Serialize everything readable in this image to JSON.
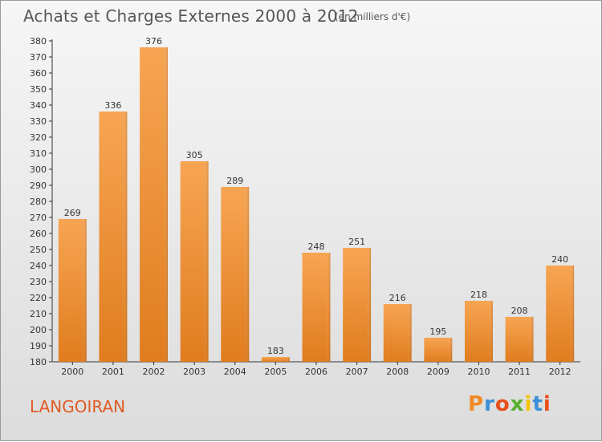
{
  "header": {
    "title": "Achats et Charges Externes 2000 à 2012",
    "subtitle": "(en milliers d'€)"
  },
  "footer": {
    "commune": "LANGOIRAN",
    "logo_text": "Proxiti",
    "logo_colors": [
      "#f08a24",
      "#3a8fd6",
      "#e94e1b",
      "#58b030",
      "#f5c400",
      "#3a8fd6",
      "#e94e1b"
    ]
  },
  "chart_data": {
    "type": "bar",
    "title": "Achats et Charges Externes 2000 à 2012",
    "subtitle": "(en milliers d'€)",
    "categories": [
      "2000",
      "2001",
      "2002",
      "2003",
      "2004",
      "2005",
      "2006",
      "2007",
      "2008",
      "2009",
      "2010",
      "2011",
      "2012"
    ],
    "values": [
      269,
      336,
      376,
      305,
      289,
      183,
      248,
      251,
      216,
      195,
      218,
      208,
      240
    ],
    "ylim": [
      180,
      380
    ],
    "ytick_step": 10,
    "grid": false,
    "bar_color_top": "#f7a553",
    "bar_color_bottom": "#e07c1e"
  }
}
